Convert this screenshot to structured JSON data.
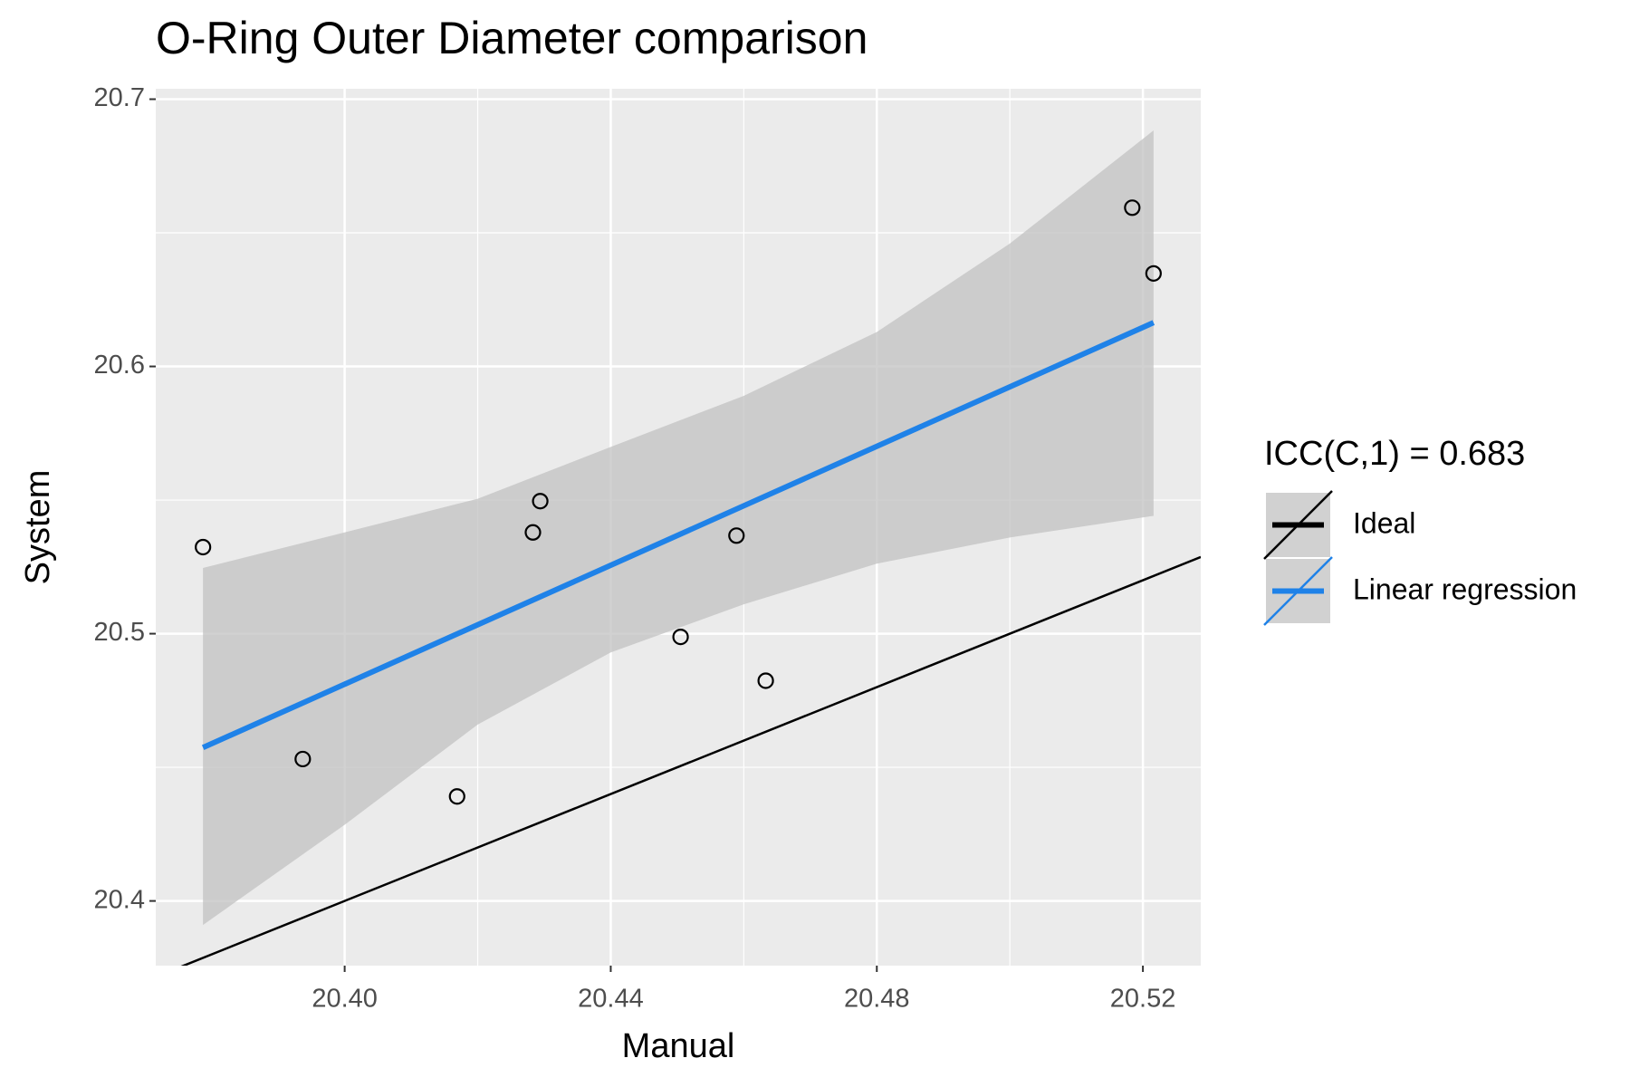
{
  "chart_data": {
    "type": "scatter",
    "title": "O-Ring Outer Diameter comparison",
    "x_label": "Manual",
    "y_label": "System",
    "xlim": [
      20.3716,
      20.5287
    ],
    "ylim": [
      20.3758,
      20.7039
    ],
    "xticks": [
      {
        "value": 20.4,
        "label": "20.40"
      },
      {
        "value": 20.44,
        "label": "20.44"
      },
      {
        "value": 20.48,
        "label": "20.48"
      },
      {
        "value": 20.52,
        "label": "20.52"
      }
    ],
    "yticks": [
      20.4,
      20.5,
      20.6,
      20.7
    ],
    "grid": true,
    "background": "#ebebeb",
    "points": {
      "color": "#000000",
      "x": [
        20.3787,
        20.3937,
        20.4169,
        20.4283,
        20.4294,
        20.4505,
        20.4589,
        20.4633,
        20.5184,
        20.5216
      ],
      "values": [
        20.5324,
        20.4531,
        20.4391,
        20.5379,
        20.5496,
        20.4988,
        20.5367,
        20.4824,
        20.6594,
        20.6348
      ]
    },
    "legend_title": "ICC(C,1) = 0.683",
    "ideal": {
      "name": "Ideal",
      "color": "#000000",
      "slope": 1,
      "intercept": 0
    },
    "regression": {
      "name": "Linear regression",
      "color": "#1f82e8",
      "x": [
        20.3787,
        20.5216
      ],
      "values": [
        20.4574,
        20.6164
      ]
    },
    "band": {
      "color": "#c2c2c2",
      "x": [
        20.3787,
        20.4,
        20.42,
        20.44,
        20.46,
        20.48,
        20.5,
        20.5216
      ],
      "upper": [
        20.5246,
        20.5379,
        20.5505,
        20.5699,
        20.589,
        20.6129,
        20.646,
        20.6883
      ],
      "lower": [
        20.391,
        20.4285,
        20.466,
        20.493,
        20.511,
        20.5262,
        20.536,
        20.5441
      ]
    }
  }
}
